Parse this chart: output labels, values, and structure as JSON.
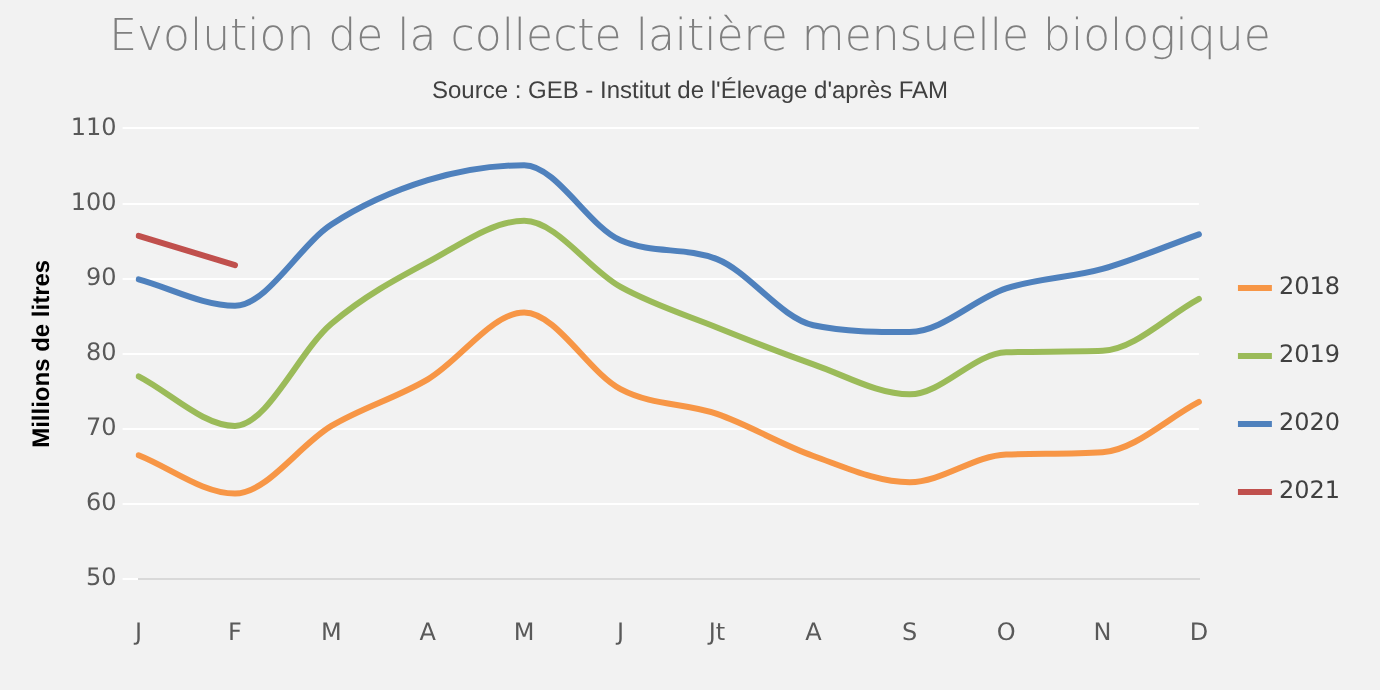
{
  "chart_data": {
    "type": "line",
    "title": "Evolution de la collecte laitière mensuelle biologique",
    "subtitle": "Source : GEB - Institut de l'Élevage d'après FAM",
    "ylabel": "Millions de litres",
    "categories": [
      "J",
      "F",
      "M",
      "A",
      "M",
      "J",
      "Jt",
      "A",
      "S",
      "O",
      "N",
      "D"
    ],
    "ylim": [
      50,
      110
    ],
    "yticks": [
      50,
      60,
      70,
      80,
      90,
      100,
      110
    ],
    "grid": "y",
    "legend": "right",
    "marker": "none",
    "line_style": "solid",
    "series": [
      {
        "name": "2018",
        "color": "#f79646",
        "values": [
          66.5,
          61.4,
          70.4,
          76.6,
          85.5,
          75.3,
          72,
          66.4,
          62.9,
          66.6,
          66.9,
          73.6
        ]
      },
      {
        "name": "2019",
        "color": "#9bbb59",
        "values": [
          77,
          70.4,
          84,
          92.2,
          97.7,
          88.9,
          83.5,
          78.6,
          74.6,
          80.2,
          80.4,
          87.3
        ]
      },
      {
        "name": "2020",
        "color": "#4f81bd",
        "values": [
          89.9,
          86.4,
          97.2,
          103.1,
          105.1,
          95.1,
          92.6,
          83.8,
          82.9,
          88.7,
          91.3,
          95.9
        ]
      },
      {
        "name": "2021",
        "color": "#c0504d",
        "values": [
          95.7,
          91.8,
          null,
          null,
          null,
          null,
          null,
          null,
          null,
          null,
          null,
          null
        ]
      }
    ]
  }
}
